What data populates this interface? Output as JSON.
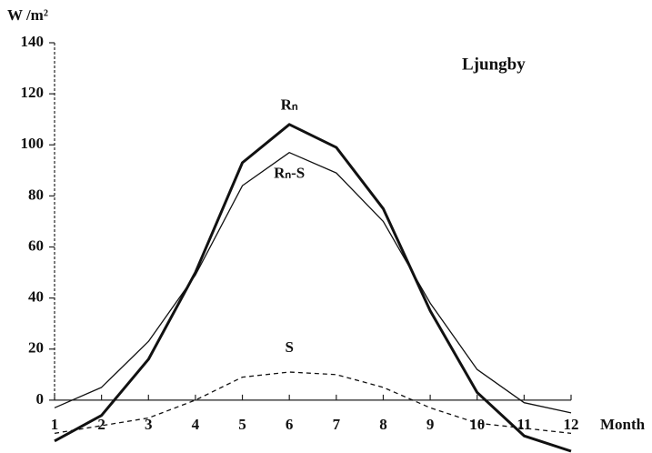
{
  "chart_data": {
    "type": "line",
    "ylabel": "W /m²",
    "xlabel": "Month",
    "annotation": "Ljungby",
    "x": [
      1,
      2,
      3,
      4,
      5,
      6,
      7,
      8,
      9,
      10,
      11,
      12
    ],
    "series": [
      {
        "name": "Rₙ",
        "color": "#111111",
        "linestyle": "solid",
        "linewidth": 3,
        "values": [
          -16,
          -6,
          16,
          50,
          93,
          108,
          99,
          75,
          35,
          3,
          -14,
          -20
        ]
      },
      {
        "name": "Rₙ-S",
        "color": "#111111",
        "linestyle": "solid",
        "linewidth": 1.3,
        "values": [
          -3,
          5,
          23,
          49,
          84,
          97,
          89,
          70,
          38,
          12,
          -1,
          -5
        ]
      },
      {
        "name": "S",
        "color": "#111111",
        "linestyle": "dashed",
        "linewidth": 1.3,
        "values": [
          -13,
          -10,
          -7,
          0,
          9,
          11,
          10,
          5,
          -3,
          -9,
          -11,
          -13
        ]
      }
    ],
    "xlim": [
      1,
      12
    ],
    "xticks": [
      1,
      2,
      3,
      4,
      5,
      6,
      7,
      8,
      9,
      10,
      11,
      12
    ],
    "ylim": [
      -20,
      140
    ],
    "yticks": [
      0,
      20,
      40,
      60,
      80,
      100,
      120,
      140
    ]
  }
}
